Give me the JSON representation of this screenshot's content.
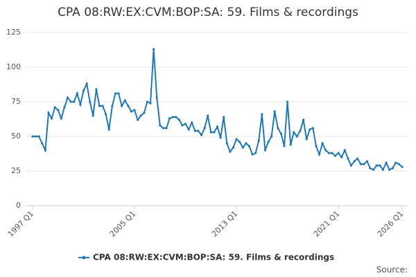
{
  "chart_data": {
    "type": "line",
    "title": "CPA 08:RW:EX:CVM:BOP:SA: 59. Films & recordings",
    "source": "Source:",
    "categories": [
      "1997 Q1",
      null,
      null,
      null,
      null,
      null,
      null,
      null,
      null,
      null,
      null,
      null,
      null,
      null,
      null,
      null,
      null,
      null,
      null,
      null,
      null,
      null,
      null,
      null,
      null,
      null,
      null,
      null,
      null,
      null,
      null,
      null,
      "2005 Q1",
      null,
      null,
      null,
      null,
      null,
      null,
      null,
      null,
      null,
      null,
      null,
      null,
      null,
      null,
      null,
      null,
      null,
      null,
      null,
      null,
      null,
      null,
      null,
      null,
      null,
      null,
      null,
      null,
      null,
      null,
      null,
      "2013 Q1",
      null,
      null,
      null,
      null,
      null,
      null,
      null,
      null,
      null,
      null,
      null,
      null,
      null,
      null,
      null,
      null,
      null,
      null,
      null,
      null,
      null,
      null,
      null,
      null,
      null,
      null,
      null,
      null,
      null,
      null,
      null,
      "2021 Q1",
      null,
      null,
      null,
      null,
      null,
      null,
      null,
      null,
      null,
      null,
      null,
      null,
      null,
      null,
      null,
      null,
      null,
      null,
      null,
      "2026 Q1"
    ],
    "series": [
      {
        "name": "CPA 08:RW:EX:CVM:BOP:SA: 59. Films & recordings",
        "color": "#1f77b4",
        "values": [
          50,
          50,
          50,
          45,
          40,
          67,
          63,
          71,
          69,
          63,
          71,
          78,
          75,
          75,
          81,
          73,
          83,
          88,
          75,
          65,
          84,
          72,
          72,
          66,
          55,
          72,
          81,
          81,
          72,
          76,
          72,
          68,
          69,
          62,
          65,
          67,
          75,
          74,
          113,
          78,
          58,
          56,
          56,
          63,
          64,
          64,
          62,
          58,
          59,
          55,
          60,
          54,
          54,
          51,
          56,
          65,
          53,
          53,
          57,
          49,
          64,
          45,
          39,
          42,
          48,
          46,
          42,
          45,
          43,
          37,
          38,
          47,
          66,
          40,
          46,
          50,
          68,
          56,
          52,
          43,
          75,
          44,
          53,
          50,
          54,
          62,
          48,
          55,
          56,
          43,
          37,
          45,
          40,
          38,
          38,
          36,
          38,
          35,
          40,
          34,
          29,
          32,
          34,
          30,
          30,
          32,
          27,
          26,
          29,
          29,
          26,
          31,
          26,
          27,
          31,
          30,
          28
        ]
      }
    ],
    "ylim": [
      0,
      125
    ],
    "yticks": [
      0,
      25,
      50,
      75,
      100,
      125
    ],
    "grid": true
  }
}
